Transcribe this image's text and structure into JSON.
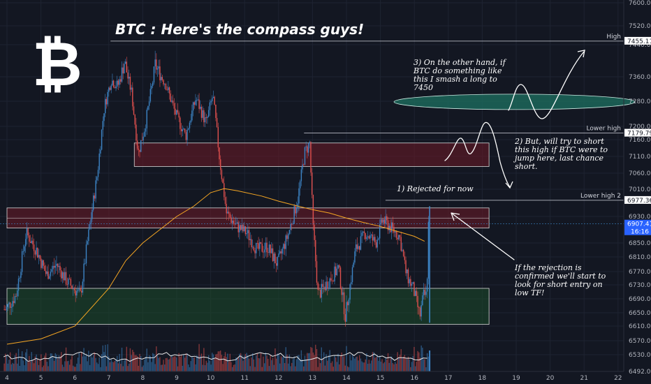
{
  "chart_data": {
    "type": "candlestick",
    "title": "BTC : Here's the compass guys!",
    "x_ticks": [
      "4",
      "5",
      "6",
      "7",
      "8",
      "9",
      "10",
      "11",
      "12",
      "13",
      "14",
      "15",
      "16",
      "17",
      "18",
      "19",
      "20",
      "21",
      "22"
    ],
    "y_ticks": [
      "7600.00",
      "7520.00",
      "7440.00",
      "7360.00",
      "7280.00",
      "7200.00",
      "7160.00",
      "7110.00",
      "7060.00",
      "7010.00",
      "6930.00",
      "6850.00",
      "6810.00",
      "6770.00",
      "6730.00",
      "6690.00",
      "6650.00",
      "6610.00",
      "6570.00",
      "6530.00",
      "6492.00"
    ],
    "ylim": [
      6470,
      7620
    ],
    "price_path": [
      [
        4.0,
        6660
      ],
      [
        4.3,
        6700
      ],
      [
        4.6,
        6880
      ],
      [
        4.9,
        6830
      ],
      [
        5.2,
        6760
      ],
      [
        5.5,
        6790
      ],
      [
        5.8,
        6740
      ],
      [
        6.0,
        6720
      ],
      [
        6.2,
        6700
      ],
      [
        6.4,
        6850
      ],
      [
        6.7,
        7060
      ],
      [
        6.9,
        7260
      ],
      [
        7.1,
        7350
      ],
      [
        7.3,
        7330
      ],
      [
        7.5,
        7400
      ],
      [
        7.7,
        7310
      ],
      [
        7.9,
        7120
      ],
      [
        8.1,
        7200
      ],
      [
        8.4,
        7390
      ],
      [
        8.7,
        7340
      ],
      [
        9.0,
        7240
      ],
      [
        9.3,
        7170
      ],
      [
        9.6,
        7290
      ],
      [
        9.9,
        7210
      ],
      [
        10.1,
        7300
      ],
      [
        10.3,
        7100
      ],
      [
        10.5,
        6940
      ],
      [
        10.8,
        6900
      ],
      [
        11.1,
        6880
      ],
      [
        11.4,
        6830
      ],
      [
        11.7,
        6840
      ],
      [
        12.0,
        6790
      ],
      [
        12.3,
        6870
      ],
      [
        12.6,
        6980
      ],
      [
        12.8,
        7120
      ],
      [
        12.95,
        7150
      ],
      [
        13.05,
        6900
      ],
      [
        13.2,
        6700
      ],
      [
        13.5,
        6740
      ],
      [
        13.8,
        6780
      ],
      [
        14.0,
        6640
      ],
      [
        14.3,
        6830
      ],
      [
        14.6,
        6880
      ],
      [
        14.9,
        6850
      ],
      [
        15.1,
        6920
      ],
      [
        15.3,
        6900
      ],
      [
        15.6,
        6870
      ],
      [
        15.8,
        6760
      ],
      [
        16.0,
        6720
      ],
      [
        16.2,
        6640
      ],
      [
        16.3,
        6700
      ],
      [
        16.4,
        6700
      ],
      [
        16.45,
        6907.41
      ]
    ],
    "ma_path": [
      [
        4.0,
        6560
      ],
      [
        5.0,
        6575
      ],
      [
        6.0,
        6610
      ],
      [
        7.0,
        6720
      ],
      [
        7.5,
        6800
      ],
      [
        8.0,
        6850
      ],
      [
        9.0,
        6930
      ],
      [
        9.5,
        6960
      ],
      [
        10.0,
        7000
      ],
      [
        10.4,
        7012
      ],
      [
        10.8,
        7005
      ],
      [
        11.5,
        6990
      ],
      [
        12.0,
        6975
      ],
      [
        12.5,
        6962
      ],
      [
        13.0,
        6950
      ],
      [
        13.5,
        6940
      ],
      [
        14.0,
        6925
      ],
      [
        14.5,
        6912
      ],
      [
        15.0,
        6900
      ],
      [
        15.5,
        6885
      ],
      [
        16.0,
        6870
      ],
      [
        16.3,
        6855
      ]
    ],
    "levels": [
      {
        "label": "High",
        "price": "7455.11",
        "y": 7455.11
      },
      {
        "label": "Lower high",
        "price": "7179.79",
        "y": 7179.79
      },
      {
        "label": "Lower high 2",
        "price": "6977.36",
        "y": 6977.36
      }
    ],
    "current_price": "6907.41",
    "countdown": "16:16",
    "zones": [
      {
        "name": "upper-supply",
        "x0": 7.75,
        "x1": 18.2,
        "y0": 7080,
        "y1": 7150,
        "color": "#6d1a26"
      },
      {
        "name": "middle-supply",
        "x0": 4.0,
        "x1": 18.2,
        "y0": 6895,
        "y1": 6955,
        "color": "#6d1a26"
      },
      {
        "name": "demand",
        "x0": 4.0,
        "x1": 18.2,
        "y0": 6615,
        "y1": 6720,
        "color": "#1b4a2a"
      }
    ],
    "ellipse": {
      "cx": 18.95,
      "cy": 7278,
      "rx": 3.55,
      "ry": 20,
      "color": "#1d6b5e"
    },
    "annotations": {
      "note3": "3) On the other hand, if BTC do something like this I smash a long to 7450",
      "note2": "2) But, will try to short this high if BTC were to jump here, last chance short.",
      "note1": "1) Rejected for now",
      "note4": "If the rejection is confirmed we'll start to look for short entry on low TF!"
    },
    "colors": {
      "up": "#3d85c6",
      "down": "#e0504e",
      "ma": "#f5a623",
      "background": "#131722",
      "text": "#ffffff"
    }
  },
  "logo": {
    "icon": "bitcoin-icon",
    "glyph": "₿"
  }
}
